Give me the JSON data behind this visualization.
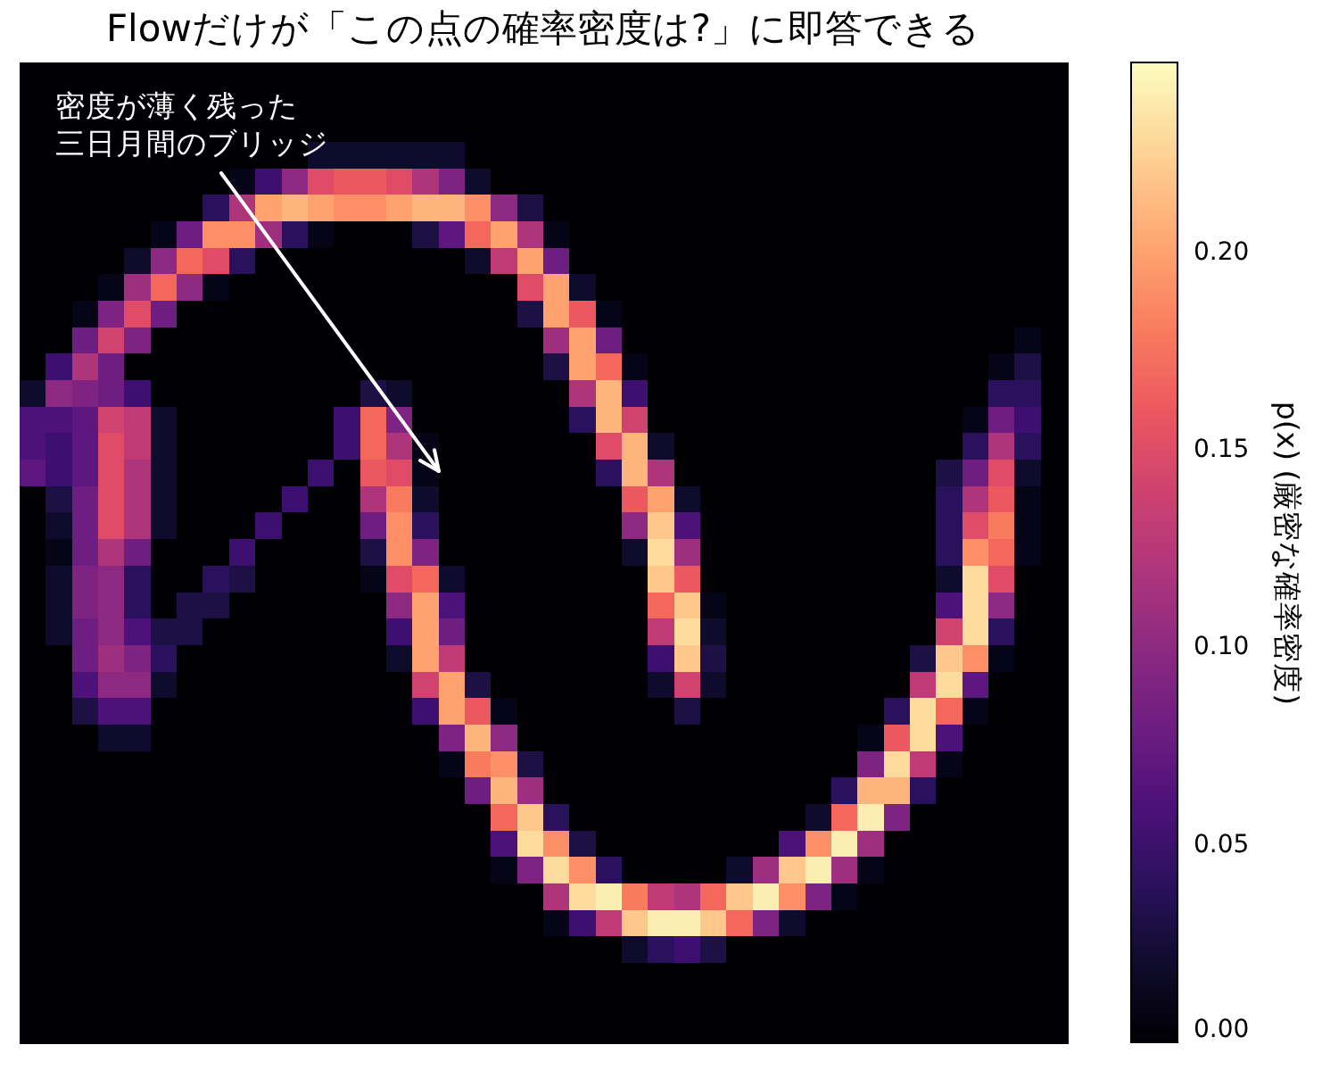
{
  "chart_data": {
    "type": "heatmap",
    "title": "Flowだけが「この点の確率密度は?」に即答できる",
    "clabel": "p(x) (厳密な確率密度)",
    "annotations": [
      "密度が薄く残った三日月間のブリッジ"
    ],
    "tick_labels": false,
    "clim": [
      0,
      0.248
    ],
    "cticks": [
      {
        "value": 0,
        "label": "0.00"
      },
      {
        "value": 0.05,
        "label": "0.05"
      },
      {
        "value": 0.1,
        "label": "0.10"
      },
      {
        "value": 0.15,
        "label": "0.15"
      },
      {
        "value": 0.2,
        "label": "0.20"
      }
    ],
    "categories": [
      null,
      null,
      null,
      null,
      null,
      null,
      null,
      null,
      null,
      null,
      null,
      null,
      null,
      null,
      null,
      null,
      null,
      null,
      null,
      null,
      null,
      null,
      null,
      null,
      null,
      null,
      null,
      null,
      null,
      null,
      null,
      null,
      null,
      null,
      null,
      null,
      null,
      null,
      null,
      null
    ],
    "y_categories": [
      null,
      null,
      null,
      null,
      null,
      null,
      null,
      null,
      null,
      null,
      null,
      null,
      null,
      null,
      null,
      null,
      null,
      null,
      null,
      null,
      null,
      null,
      null,
      null,
      null,
      null,
      null,
      null,
      null,
      null,
      null,
      null,
      null,
      null,
      null,
      null,
      null
    ],
    "cells": [
      [
        0,
        0,
        0,
        0,
        0,
        0,
        0,
        0,
        0,
        0,
        0,
        0,
        0,
        0,
        0,
        0,
        0,
        0,
        0,
        0,
        0,
        0,
        0,
        0,
        0,
        0,
        0,
        0,
        0,
        0,
        0,
        0,
        0,
        0,
        0,
        0,
        0,
        0,
        0,
        0
      ],
      [
        0,
        0,
        0,
        0,
        0,
        0,
        0,
        0,
        0,
        0,
        0,
        0,
        0,
        0,
        0,
        0,
        0,
        0,
        0,
        0,
        0,
        0,
        0,
        0,
        0,
        0,
        0,
        0,
        0,
        0,
        0,
        0,
        0,
        0,
        0,
        0,
        0,
        0,
        0,
        0
      ],
      [
        0,
        0,
        0,
        0,
        0,
        0,
        0,
        0,
        0,
        0,
        0,
        0,
        0,
        0,
        0,
        0,
        0,
        0,
        0,
        0,
        0,
        0,
        0,
        0,
        0,
        0,
        0,
        0,
        0,
        0,
        0,
        0,
        0,
        0,
        0,
        0,
        0,
        0,
        0,
        0
      ],
      [
        0,
        0,
        0,
        0,
        0,
        0,
        0,
        0,
        0,
        0,
        0,
        0.02,
        0.02,
        0.02,
        0.02,
        0.02,
        0.02,
        0,
        0,
        0,
        0,
        0,
        0,
        0,
        0,
        0,
        0,
        0,
        0,
        0,
        0,
        0,
        0,
        0,
        0,
        0,
        0,
        0,
        0,
        0
      ],
      [
        0,
        0,
        0,
        0,
        0,
        0,
        0,
        0,
        0.01,
        0.05,
        0.1,
        0.15,
        0.16,
        0.16,
        0.15,
        0.12,
        0.09,
        0.02,
        0,
        0,
        0,
        0,
        0,
        0,
        0,
        0,
        0,
        0,
        0,
        0,
        0,
        0,
        0,
        0,
        0,
        0,
        0,
        0,
        0,
        0
      ],
      [
        0,
        0,
        0,
        0,
        0,
        0,
        0,
        0.04,
        0.12,
        0.2,
        0.21,
        0.2,
        0.19,
        0.19,
        0.2,
        0.21,
        0.21,
        0.19,
        0.1,
        0.03,
        0,
        0,
        0,
        0,
        0,
        0,
        0,
        0,
        0,
        0,
        0,
        0,
        0,
        0,
        0,
        0,
        0,
        0,
        0,
        0
      ],
      [
        0,
        0,
        0,
        0,
        0,
        0.01,
        0.08,
        0.19,
        0.19,
        0.11,
        0.04,
        0.01,
        0,
        0,
        0,
        0.03,
        0.07,
        0.17,
        0.2,
        0.12,
        0.01,
        0,
        0,
        0,
        0,
        0,
        0,
        0,
        0,
        0,
        0,
        0,
        0,
        0,
        0,
        0,
        0,
        0,
        0,
        0
      ],
      [
        0,
        0,
        0,
        0,
        0.02,
        0.1,
        0.17,
        0.15,
        0.04,
        0,
        0,
        0,
        0,
        0,
        0,
        0,
        0,
        0.02,
        0.13,
        0.2,
        0.08,
        0,
        0,
        0,
        0,
        0,
        0,
        0,
        0,
        0,
        0,
        0,
        0,
        0,
        0,
        0,
        0,
        0,
        0,
        0
      ],
      [
        0,
        0,
        0,
        0.01,
        0.11,
        0.17,
        0.1,
        0.01,
        0,
        0,
        0,
        0,
        0,
        0,
        0,
        0,
        0,
        0,
        0,
        0.15,
        0.2,
        0.02,
        0,
        0,
        0,
        0,
        0,
        0,
        0,
        0,
        0,
        0,
        0,
        0,
        0,
        0,
        0,
        0,
        0,
        0
      ],
      [
        0,
        0,
        0.01,
        0.09,
        0.15,
        0.08,
        0,
        0,
        0,
        0,
        0,
        0,
        0,
        0,
        0,
        0,
        0,
        0,
        0,
        0.03,
        0.2,
        0.16,
        0.01,
        0,
        0,
        0,
        0,
        0,
        0,
        0,
        0,
        0,
        0,
        0,
        0,
        0,
        0,
        0,
        0,
        0
      ],
      [
        0,
        0,
        0.08,
        0.14,
        0.09,
        0,
        0,
        0,
        0,
        0,
        0,
        0,
        0,
        0,
        0,
        0,
        0,
        0,
        0,
        0,
        0.11,
        0.2,
        0.08,
        0,
        0,
        0,
        0,
        0,
        0,
        0,
        0,
        0,
        0,
        0,
        0,
        0,
        0,
        0,
        0.01,
        0
      ],
      [
        0,
        0.05,
        0.12,
        0.08,
        0,
        0,
        0,
        0,
        0,
        0,
        0,
        0,
        0,
        0,
        0,
        0,
        0,
        0,
        0,
        0,
        0.03,
        0.2,
        0.17,
        0.01,
        0,
        0,
        0,
        0,
        0,
        0,
        0,
        0,
        0,
        0,
        0,
        0,
        0,
        0.01,
        0.03,
        0
      ],
      [
        0.02,
        0.1,
        0.09,
        0.08,
        0.05,
        0,
        0,
        0,
        0,
        0,
        0,
        0,
        0,
        0.03,
        0.02,
        0,
        0,
        0,
        0,
        0,
        0,
        0.12,
        0.21,
        0.05,
        0,
        0,
        0,
        0,
        0,
        0,
        0,
        0,
        0,
        0,
        0,
        0,
        0,
        0.04,
        0.04,
        0
      ],
      [
        0.06,
        0.06,
        0.07,
        0.14,
        0.13,
        0.02,
        0,
        0,
        0,
        0,
        0,
        0,
        0.05,
        0.17,
        0.09,
        0,
        0,
        0,
        0,
        0,
        0,
        0.04,
        0.21,
        0.14,
        0,
        0,
        0,
        0,
        0,
        0,
        0,
        0,
        0,
        0,
        0,
        0,
        0.01,
        0.08,
        0.05,
        0
      ],
      [
        0.06,
        0.05,
        0.07,
        0.15,
        0.13,
        0.02,
        0,
        0,
        0,
        0,
        0,
        0,
        0.05,
        0.17,
        0.12,
        0.01,
        0,
        0,
        0,
        0,
        0,
        0,
        0.15,
        0.21,
        0.02,
        0,
        0,
        0,
        0,
        0,
        0,
        0,
        0,
        0,
        0,
        0,
        0.04,
        0.12,
        0.04,
        0
      ],
      [
        0.07,
        0.05,
        0.07,
        0.15,
        0.12,
        0.02,
        0,
        0,
        0,
        0,
        0,
        0.05,
        0,
        0.16,
        0.15,
        0.01,
        0,
        0,
        0,
        0,
        0,
        0,
        0.04,
        0.21,
        0.12,
        0,
        0,
        0,
        0,
        0,
        0,
        0,
        0,
        0,
        0,
        0.03,
        0.08,
        0.15,
        0.02,
        0
      ],
      [
        0,
        0.03,
        0.08,
        0.15,
        0.12,
        0.02,
        0,
        0,
        0,
        0,
        0.05,
        0,
        0,
        0.12,
        0.18,
        0.02,
        0,
        0,
        0,
        0,
        0,
        0,
        0,
        0.16,
        0.2,
        0.02,
        0,
        0,
        0,
        0,
        0,
        0,
        0,
        0,
        0,
        0.04,
        0.12,
        0.16,
        0.01,
        0
      ],
      [
        0,
        0.02,
        0.08,
        0.15,
        0.12,
        0.02,
        0,
        0,
        0,
        0.05,
        0,
        0,
        0,
        0.08,
        0.19,
        0.04,
        0,
        0,
        0,
        0,
        0,
        0,
        0,
        0.1,
        0.22,
        0.06,
        0,
        0,
        0,
        0,
        0,
        0,
        0,
        0,
        0,
        0.04,
        0.15,
        0.18,
        0.01,
        0
      ],
      [
        0,
        0.01,
        0.08,
        0.12,
        0.08,
        0,
        0,
        0,
        0.05,
        0,
        0,
        0,
        0,
        0.03,
        0.19,
        0.09,
        0,
        0,
        0,
        0,
        0,
        0,
        0,
        0.02,
        0.23,
        0.11,
        0,
        0,
        0,
        0,
        0,
        0,
        0,
        0,
        0,
        0.04,
        0.19,
        0.17,
        0.01,
        0
      ],
      [
        0,
        0.02,
        0.09,
        0.1,
        0.04,
        0,
        0,
        0.04,
        0.03,
        0,
        0,
        0,
        0,
        0.01,
        0.15,
        0.17,
        0.02,
        0,
        0,
        0,
        0,
        0,
        0,
        0,
        0.22,
        0.16,
        0,
        0,
        0,
        0,
        0,
        0,
        0,
        0,
        0,
        0.02,
        0.23,
        0.15,
        0,
        0
      ],
      [
        0,
        0.02,
        0.09,
        0.1,
        0.04,
        0,
        0.03,
        0.03,
        0,
        0,
        0,
        0,
        0,
        0,
        0.1,
        0.2,
        0.06,
        0,
        0,
        0,
        0,
        0,
        0,
        0,
        0.17,
        0.22,
        0.01,
        0,
        0,
        0,
        0,
        0,
        0,
        0,
        0,
        0.06,
        0.23,
        0.1,
        0,
        0
      ],
      [
        0,
        0.02,
        0.08,
        0.1,
        0.06,
        0.03,
        0.03,
        0,
        0,
        0,
        0,
        0,
        0,
        0,
        0.05,
        0.2,
        0.08,
        0,
        0,
        0,
        0,
        0,
        0,
        0,
        0.13,
        0.23,
        0.02,
        0,
        0,
        0,
        0,
        0,
        0,
        0,
        0,
        0.14,
        0.23,
        0.04,
        0,
        0
      ],
      [
        0,
        0,
        0.08,
        0.11,
        0.09,
        0.04,
        0,
        0,
        0,
        0,
        0,
        0,
        0,
        0,
        0.02,
        0.2,
        0.13,
        0,
        0,
        0,
        0,
        0,
        0,
        0,
        0.05,
        0.22,
        0.03,
        0,
        0,
        0,
        0,
        0,
        0,
        0,
        0.03,
        0.22,
        0.19,
        0.01,
        0,
        0
      ],
      [
        0,
        0,
        0.06,
        0.1,
        0.1,
        0.02,
        0,
        0,
        0,
        0,
        0,
        0,
        0,
        0,
        0,
        0.14,
        0.2,
        0.03,
        0,
        0,
        0,
        0,
        0,
        0,
        0.02,
        0.14,
        0.02,
        0,
        0,
        0,
        0,
        0,
        0,
        0,
        0.13,
        0.23,
        0.07,
        0,
        0,
        0
      ],
      [
        0,
        0,
        0.03,
        0.06,
        0.06,
        0,
        0,
        0,
        0,
        0,
        0,
        0,
        0,
        0,
        0,
        0.05,
        0.2,
        0.16,
        0.01,
        0,
        0,
        0,
        0,
        0,
        0,
        0.03,
        0,
        0,
        0,
        0,
        0,
        0,
        0,
        0.04,
        0.23,
        0.17,
        0.01,
        0,
        0,
        0
      ],
      [
        0,
        0,
        0,
        0.02,
        0.02,
        0,
        0,
        0,
        0,
        0,
        0,
        0,
        0,
        0,
        0,
        0,
        0.09,
        0.21,
        0.1,
        0,
        0,
        0,
        0,
        0,
        0,
        0,
        0,
        0,
        0,
        0,
        0,
        0,
        0.01,
        0.16,
        0.23,
        0.06,
        0,
        0,
        0,
        0
      ],
      [
        0,
        0,
        0,
        0,
        0,
        0,
        0,
        0,
        0,
        0,
        0,
        0,
        0,
        0,
        0,
        0,
        0.01,
        0.18,
        0.19,
        0.03,
        0,
        0,
        0,
        0,
        0,
        0,
        0,
        0,
        0,
        0,
        0,
        0,
        0.09,
        0.23,
        0.13,
        0.01,
        0,
        0,
        0,
        0
      ],
      [
        0,
        0,
        0,
        0,
        0,
        0,
        0,
        0,
        0,
        0,
        0,
        0,
        0,
        0,
        0,
        0,
        0,
        0.08,
        0.21,
        0.11,
        0,
        0,
        0,
        0,
        0,
        0,
        0,
        0,
        0,
        0,
        0,
        0.04,
        0.21,
        0.21,
        0.04,
        0,
        0,
        0,
        0,
        0
      ],
      [
        0,
        0,
        0,
        0,
        0,
        0,
        0,
        0,
        0,
        0,
        0,
        0,
        0,
        0,
        0,
        0,
        0,
        0,
        0.17,
        0.22,
        0.04,
        0,
        0,
        0,
        0,
        0,
        0,
        0,
        0,
        0,
        0.02,
        0.17,
        0.24,
        0.09,
        0,
        0,
        0,
        0,
        0,
        0
      ],
      [
        0,
        0,
        0,
        0,
        0,
        0,
        0,
        0,
        0,
        0,
        0,
        0,
        0,
        0,
        0,
        0,
        0,
        0,
        0.06,
        0.23,
        0.19,
        0.03,
        0,
        0,
        0,
        0,
        0,
        0,
        0,
        0.06,
        0.19,
        0.24,
        0.11,
        0,
        0,
        0,
        0,
        0,
        0,
        0
      ],
      [
        0,
        0,
        0,
        0,
        0,
        0,
        0,
        0,
        0,
        0,
        0,
        0,
        0,
        0,
        0,
        0,
        0,
        0,
        0.01,
        0.09,
        0.23,
        0.19,
        0.04,
        0,
        0,
        0,
        0,
        0.02,
        0.11,
        0.22,
        0.24,
        0.11,
        0.01,
        0,
        0,
        0,
        0,
        0,
        0,
        0
      ],
      [
        0,
        0,
        0,
        0,
        0,
        0,
        0,
        0,
        0,
        0,
        0,
        0,
        0,
        0,
        0,
        0,
        0,
        0,
        0,
        0,
        0.12,
        0.23,
        0.24,
        0.18,
        0.13,
        0.12,
        0.17,
        0.22,
        0.24,
        0.19,
        0.09,
        0.01,
        0,
        0,
        0,
        0,
        0,
        0,
        0,
        0
      ],
      [
        0,
        0,
        0,
        0,
        0,
        0,
        0,
        0,
        0,
        0,
        0,
        0,
        0,
        0,
        0,
        0,
        0,
        0,
        0,
        0,
        0.01,
        0.05,
        0.13,
        0.22,
        0.24,
        0.24,
        0.22,
        0.17,
        0.09,
        0.02,
        0,
        0,
        0,
        0,
        0,
        0,
        0,
        0,
        0,
        0
      ],
      [
        0,
        0,
        0,
        0,
        0,
        0,
        0,
        0,
        0,
        0,
        0,
        0,
        0,
        0,
        0,
        0,
        0,
        0,
        0,
        0,
        0,
        0,
        0,
        0.02,
        0.04,
        0.05,
        0.03,
        0,
        0,
        0,
        0,
        0,
        0,
        0,
        0,
        0,
        0,
        0,
        0,
        0
      ],
      [
        0,
        0,
        0,
        0,
        0,
        0,
        0,
        0,
        0,
        0,
        0,
        0,
        0,
        0,
        0,
        0,
        0,
        0,
        0,
        0,
        0,
        0,
        0,
        0,
        0,
        0,
        0,
        0,
        0,
        0,
        0,
        0,
        0,
        0,
        0,
        0,
        0,
        0,
        0,
        0
      ],
      [
        0,
        0,
        0,
        0,
        0,
        0,
        0,
        0,
        0,
        0,
        0,
        0,
        0,
        0,
        0,
        0,
        0,
        0,
        0,
        0,
        0,
        0,
        0,
        0,
        0,
        0,
        0,
        0,
        0,
        0,
        0,
        0,
        0,
        0,
        0,
        0,
        0,
        0,
        0,
        0
      ],
      [
        0,
        0,
        0,
        0,
        0,
        0,
        0,
        0,
        0,
        0,
        0,
        0,
        0,
        0,
        0,
        0,
        0,
        0,
        0,
        0,
        0,
        0,
        0,
        0,
        0,
        0,
        0,
        0,
        0,
        0,
        0,
        0,
        0,
        0,
        0,
        0,
        0,
        0,
        0,
        0
      ]
    ]
  }
}
